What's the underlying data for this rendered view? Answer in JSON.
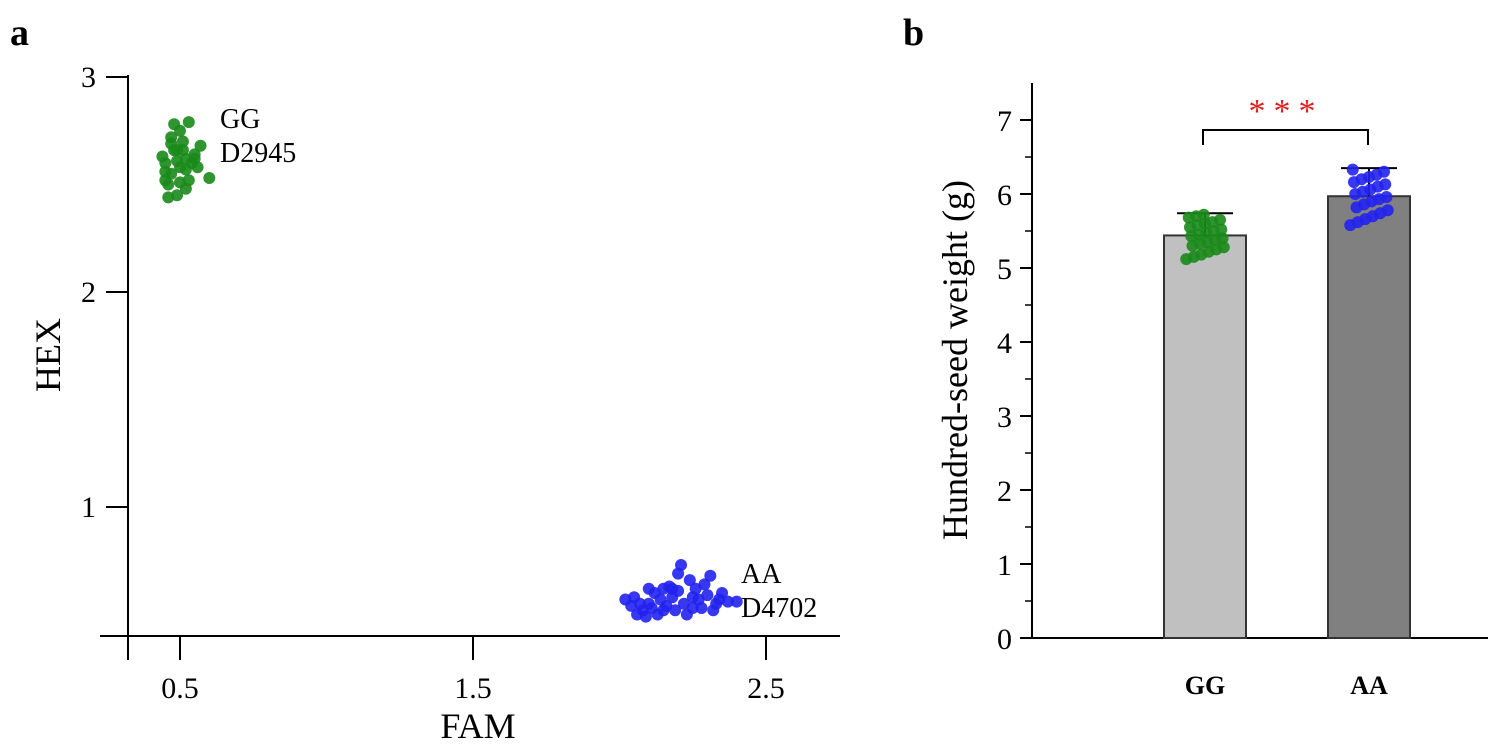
{
  "panel_a": {
    "label": "a"
  },
  "panel_b": {
    "label": "b"
  },
  "chart_data": [
    {
      "type": "scatter",
      "xlabel": "FAM",
      "ylabel": "HEX",
      "x_ticks": [
        "0.5",
        "1.5",
        "2.5"
      ],
      "y_ticks": [
        "1",
        "2",
        "3"
      ],
      "xlim": [
        0.25,
        2.8
      ],
      "ylim": [
        0.4,
        3.0
      ],
      "series": [
        {
          "name": "GG D2945",
          "label_lines": [
            "GG",
            "D2945"
          ],
          "color": "#1a8a1a",
          "points": [
            [
              0.45,
              2.6
            ],
            [
              0.47,
              2.55
            ],
            [
              0.5,
              2.58
            ],
            [
              0.52,
              2.62
            ],
            [
              0.48,
              2.66
            ],
            [
              0.55,
              2.64
            ],
            [
              0.46,
              2.5
            ],
            [
              0.49,
              2.45
            ],
            [
              0.44,
              2.63
            ],
            [
              0.51,
              2.7
            ],
            [
              0.47,
              2.72
            ],
            [
              0.53,
              2.52
            ],
            [
              0.56,
              2.58
            ],
            [
              0.49,
              2.66
            ],
            [
              0.52,
              2.48
            ],
            [
              0.46,
              2.44
            ],
            [
              0.5,
              2.75
            ],
            [
              0.48,
              2.78
            ],
            [
              0.45,
              2.56
            ],
            [
              0.57,
              2.68
            ],
            [
              0.6,
              2.53
            ],
            [
              0.54,
              2.6
            ],
            [
              0.51,
              2.66
            ],
            [
              0.49,
              2.61
            ],
            [
              0.47,
              2.69
            ],
            [
              0.52,
              2.57
            ],
            [
              0.55,
              2.62
            ],
            [
              0.45,
              2.52
            ],
            [
              0.5,
              2.51
            ],
            [
              0.53,
              2.79
            ]
          ]
        },
        {
          "name": "AA D4702",
          "label_lines": [
            "AA",
            "D4702"
          ],
          "color": "#2222ee",
          "points": [
            [
              2.05,
              0.58
            ],
            [
              2.08,
              0.52
            ],
            [
              2.1,
              0.55
            ],
            [
              2.12,
              0.6
            ],
            [
              2.15,
              0.52
            ],
            [
              2.18,
              0.58
            ],
            [
              2.2,
              0.61
            ],
            [
              2.22,
              0.55
            ],
            [
              2.25,
              0.58
            ],
            [
              2.28,
              0.53
            ],
            [
              2.3,
              0.59
            ],
            [
              2.33,
              0.55
            ],
            [
              2.06,
              0.5
            ],
            [
              2.09,
              0.49
            ],
            [
              2.13,
              0.5
            ],
            [
              2.16,
              0.54
            ],
            [
              2.19,
              0.52
            ],
            [
              2.23,
              0.5
            ],
            [
              2.26,
              0.62
            ],
            [
              2.29,
              0.64
            ],
            [
              2.31,
              0.68
            ],
            [
              2.24,
              0.66
            ],
            [
              2.2,
              0.69
            ],
            [
              2.17,
              0.63
            ],
            [
              2.14,
              0.57
            ],
            [
              2.11,
              0.53
            ],
            [
              2.07,
              0.55
            ],
            [
              2.34,
              0.57
            ],
            [
              2.37,
              0.56
            ],
            [
              2.4,
              0.56
            ],
            [
              2.35,
              0.6
            ],
            [
              2.21,
              0.73
            ],
            [
              2.18,
              0.62
            ],
            [
              2.27,
              0.57
            ],
            [
              2.1,
              0.62
            ],
            [
              2.04,
              0.54
            ],
            [
              2.15,
              0.62
            ],
            [
              2.32,
              0.52
            ],
            [
              2.02,
              0.57
            ],
            [
              2.25,
              0.53
            ]
          ]
        }
      ]
    },
    {
      "type": "bar",
      "ylabel": "Hundred-seed weight (g)",
      "categories": [
        "GG",
        "AA"
      ],
      "values": [
        5.44,
        5.97
      ],
      "errors": [
        0.3,
        0.38
      ],
      "ylim": [
        0,
        7.5
      ],
      "y_ticks": [
        "0",
        "1",
        "2",
        "3",
        "4",
        "5",
        "6",
        "7"
      ],
      "bar_colors": [
        "#c0c0c0",
        "#808080"
      ],
      "point_colors": [
        "#1a8a1a",
        "#2222ee"
      ],
      "significance": "***",
      "significance_color": "#e02020",
      "points": [
        [
          5.12,
          5.15,
          5.18,
          5.22,
          5.25,
          5.28,
          5.3,
          5.33,
          5.35,
          5.38,
          5.4,
          5.43,
          5.45,
          5.48,
          5.5,
          5.52,
          5.55,
          5.58,
          5.6,
          5.62,
          5.65,
          5.68,
          5.7,
          5.72
        ],
        [
          5.58,
          5.62,
          5.66,
          5.7,
          5.74,
          5.78,
          5.82,
          5.86,
          5.9,
          5.93,
          5.96,
          6.0,
          6.03,
          6.06,
          6.1,
          6.13,
          6.16,
          6.2,
          6.23,
          6.26,
          6.3,
          6.33
        ]
      ]
    }
  ]
}
